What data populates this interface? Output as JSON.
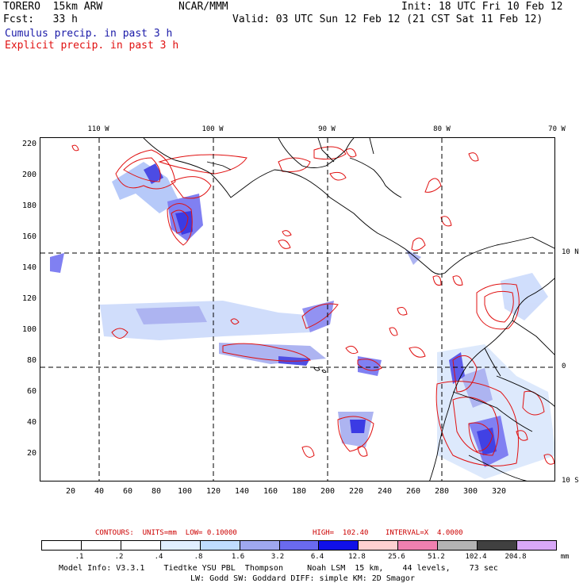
{
  "header": {
    "model": "TORERO  15km ARW",
    "org": "NCAR/MMM",
    "init": "Init: 18 UTC Fri 10 Feb 12",
    "fcst": "Fcst:   33 h",
    "valid": "Valid: 03 UTC Sun 12 Feb 12 (21 CST Sat 11 Feb 12)",
    "cumulus": "Cumulus precip. in past 3 h",
    "explicit": "Explicit precip. in past 3 h",
    "cumulus_color": "#1a1aa8",
    "explicit_color": "#e01010"
  },
  "axes": {
    "lon_labels": [
      "110 W",
      "100 W",
      "90 W",
      "80 W",
      "70 W"
    ],
    "lat_labels": [
      "10 N",
      "0",
      "10 S"
    ],
    "y_ticks": [
      "220",
      "200",
      "180",
      "160",
      "140",
      "120",
      "100",
      "80",
      "60",
      "40",
      "20"
    ],
    "x_ticks": [
      "20",
      "40",
      "60",
      "80",
      "100",
      "120",
      "140",
      "160",
      "180",
      "200",
      "220",
      "240",
      "260",
      "280",
      "300",
      "320"
    ]
  },
  "contours": {
    "units": "CONTOURS:  UNITS=mm  LOW= 0.10000",
    "high": "HIGH=  102.40",
    "interval": "INTERVAL=X  4.0000",
    "text_color": "#cc0000"
  },
  "colorbar": {
    "labels": [
      ".1",
      ".2",
      ".4",
      ".8",
      "1.6",
      "3.2",
      "6.4",
      "12.8",
      "25.6",
      "51.2",
      "102.4",
      "204.8"
    ],
    "colors": [
      "#ffffff",
      "#ffffff",
      "#ffffff",
      "#e0efff",
      "#bfdcff",
      "#9fa8ef",
      "#6a6af0",
      "#1010e8",
      "#ffd0d0",
      "#f080b0",
      "#b4b4b4",
      "#404040",
      "#d8a8f8"
    ],
    "unit": "mm"
  },
  "footer": {
    "line1": "Model Info: V3.3.1    Tiedtke YSU PBL  Thompson     Noah LSM  15 km,    44 levels,    73 sec",
    "line2": "LW: Godd SW: Goddard DIFF: simple KM: 2D Smagor"
  }
}
